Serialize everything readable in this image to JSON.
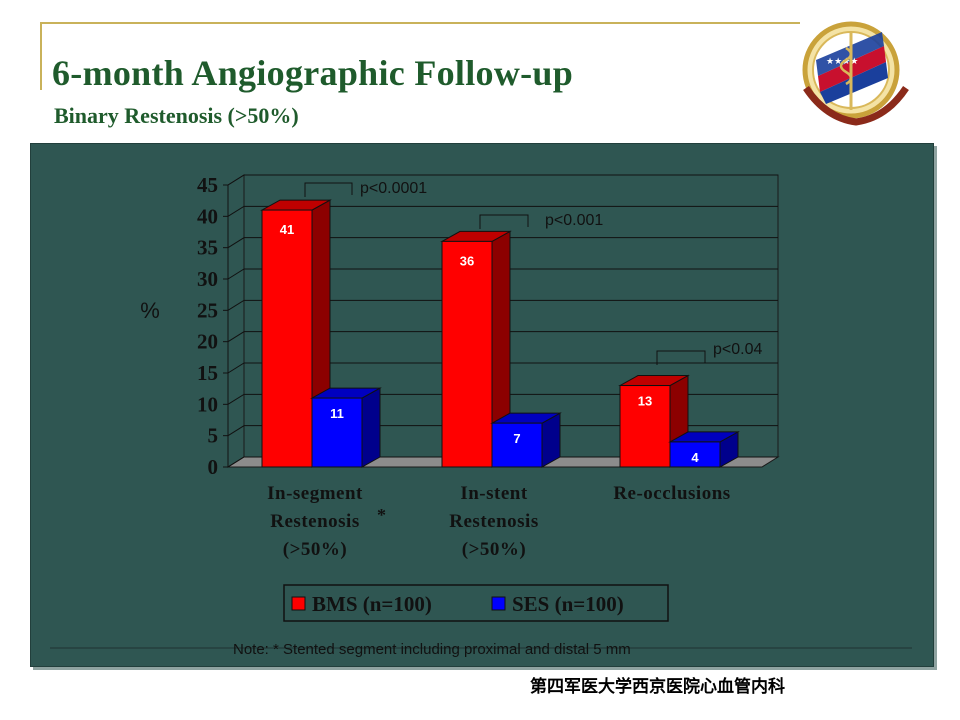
{
  "slide": {
    "title": "6-month Angiographic Follow-up",
    "subtitle": "Binary Restenosis (>50%)",
    "footer": "第四军医大学西京医院心血管内科"
  },
  "chart_data": {
    "type": "bar",
    "ylabel": "%",
    "ylim": [
      0,
      45
    ],
    "yticks": [
      0,
      5,
      10,
      15,
      20,
      25,
      30,
      35,
      40,
      45
    ],
    "grid": true,
    "legend_position": "bottom",
    "categories": [
      [
        "In-segment",
        "Restenosis",
        "(>50%)"
      ],
      [
        "In-stent",
        "Restenosis",
        "(>50%)"
      ],
      [
        "Re-occlusions"
      ]
    ],
    "category_marker": "*",
    "series": [
      {
        "name": "BMS (n=100)",
        "values": [
          41,
          36,
          13
        ],
        "color": "#ff0000"
      },
      {
        "name": "SES (n=100)",
        "values": [
          11,
          7,
          4
        ],
        "color": "#0000ff"
      }
    ],
    "annotations": [
      "p<0.0001",
      "p<0.001",
      "p<0.04"
    ],
    "note": "Note: * Stented segment including proximal and distal 5 mm"
  }
}
